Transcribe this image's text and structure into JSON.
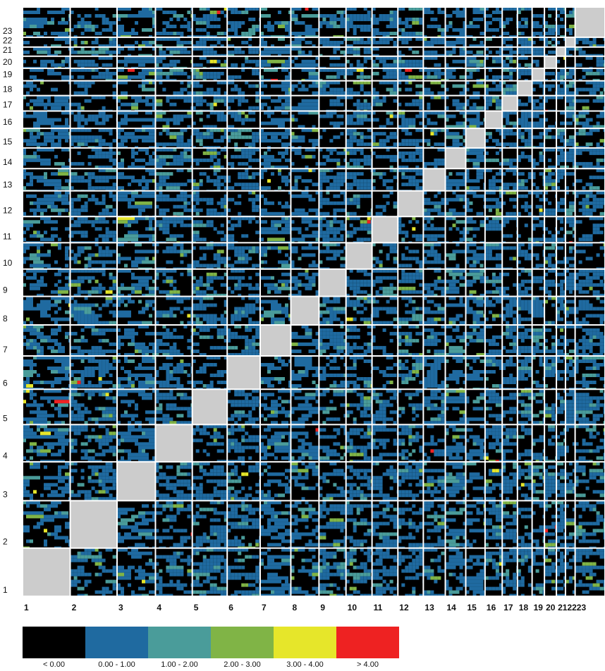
{
  "chart_data": {
    "type": "heatmap",
    "chromosomes": [
      "1",
      "2",
      "3",
      "4",
      "5",
      "6",
      "7",
      "8",
      "9",
      "10",
      "11",
      "12",
      "13",
      "14",
      "15",
      "16",
      "17",
      "18",
      "19",
      "20",
      "21",
      "22",
      "23"
    ],
    "relative_sizes": [
      247,
      243,
      199,
      191,
      181,
      171,
      159,
      146,
      140,
      135,
      134,
      132,
      114,
      106,
      100,
      89,
      79,
      76,
      64,
      62,
      47,
      50,
      155
    ],
    "x_tick_labels": [
      "1",
      "2",
      "3",
      "4",
      "5",
      "6",
      "7",
      "8",
      "9",
      "10",
      "11",
      "12",
      "13",
      "14",
      "15",
      "16",
      "17",
      "18",
      "19",
      "20",
      "21",
      "22",
      "23"
    ],
    "y_tick_labels": [
      "1",
      "2",
      "3",
      "4",
      "5",
      "6",
      "7",
      "8",
      "9",
      "10",
      "11",
      "12",
      "13",
      "14",
      "15",
      "16",
      "17",
      "18",
      "19",
      "20",
      "21",
      "22",
      "23"
    ],
    "x_tick_label_text": [
      "1",
      "2",
      "3",
      "4",
      "5",
      "6",
      "7",
      "8",
      "9",
      "10",
      "11",
      "12",
      "13",
      "14",
      "15",
      "16",
      "17",
      "18",
      "19",
      "20",
      "212223"
    ],
    "diagonal_value": "self (grey, not scored)",
    "bins": [
      {
        "label": "< 0.00",
        "color": "#000000"
      },
      {
        "label": "0.00 - 1.00",
        "color": "#1f6aa0"
      },
      {
        "label": "1.00 - 2.00",
        "color": "#4a9c9a"
      },
      {
        "label": "2.00 - 3.00",
        "color": "#80b446"
      },
      {
        "label": "3.00 - 4.00",
        "color": "#e6e62a"
      },
      {
        "label": "> 4.00",
        "color": "#ee2222"
      }
    ],
    "distribution": [
      0.5,
      0.42,
      0.06,
      0.015,
      0.004,
      0.001
    ],
    "diagonal_color": "#cccccc",
    "grid_color": "#ffffff"
  },
  "legend": {
    "labels": [
      "< 0.00",
      "0.00 - 1.00",
      "1.00 - 2.00",
      "2.00 - 3.00",
      "3.00 - 4.00",
      "> 4.00"
    ]
  }
}
